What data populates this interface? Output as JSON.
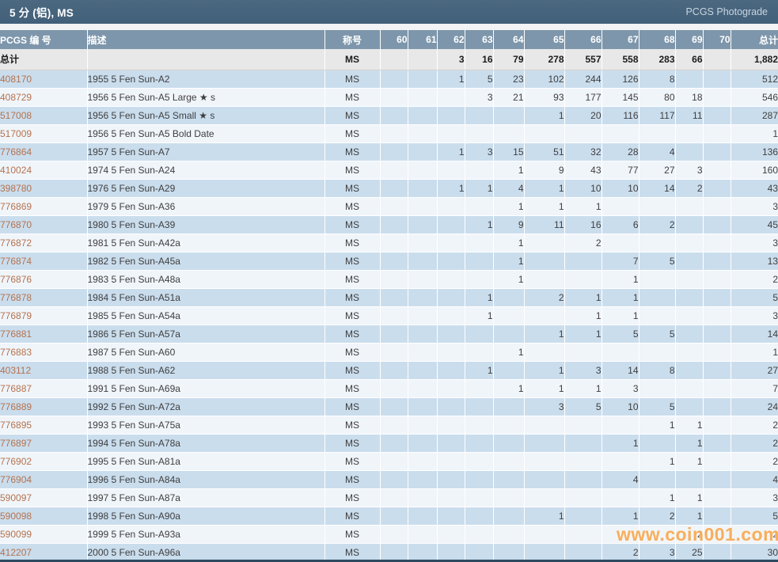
{
  "header": {
    "title": "5 分 (铝), MS",
    "photograde_link": "PCGS Photograde"
  },
  "colors": {
    "titlebar": "#45617a",
    "column_header": "#7d96ab",
    "totals_row_bg": "#e8e8e8",
    "row_blue": "#cadded",
    "row_light": "#f0f5fa",
    "pcgs_link": "#b5724e",
    "bottom_border": "#2d4a61",
    "watermark_orange": "#f4962d"
  },
  "table": {
    "column_headers": {
      "pcgs": "PCGS 编 号",
      "description": "描述",
      "designation": "称号",
      "grades": [
        "60",
        "61",
        "62",
        "63",
        "64",
        "65",
        "66",
        "67",
        "68",
        "69",
        "70"
      ],
      "total": "总计"
    },
    "totals_row": {
      "label": "总计",
      "designation": "MS",
      "grades": [
        "",
        "",
        "3",
        "16",
        "79",
        "278",
        "557",
        "558",
        "283",
        "66",
        ""
      ],
      "total": "1,882"
    },
    "rows": [
      {
        "pcgs": "408170",
        "description": "1955 5 Fen Sun-A2",
        "designation": "MS",
        "grades": [
          "",
          "",
          "1",
          "5",
          "23",
          "102",
          "244",
          "126",
          "8",
          "",
          ""
        ],
        "total": "512"
      },
      {
        "pcgs": "408729",
        "description": "1956 5 Fen Sun-A5 Large ★ s",
        "designation": "MS",
        "grades": [
          "",
          "",
          "",
          "3",
          "21",
          "93",
          "177",
          "145",
          "80",
          "18",
          ""
        ],
        "total": "546"
      },
      {
        "pcgs": "517008",
        "description": "1956 5 Fen Sun-A5 Small ★ s",
        "designation": "MS",
        "grades": [
          "",
          "",
          "",
          "",
          "",
          "1",
          "20",
          "116",
          "117",
          "11",
          ""
        ],
        "total": "287"
      },
      {
        "pcgs": "517009",
        "description": "1956 5 Fen Sun-A5 Bold Date",
        "designation": "MS",
        "grades": [
          "",
          "",
          "",
          "",
          "",
          "",
          "",
          "",
          "",
          "",
          ""
        ],
        "total": "1"
      },
      {
        "pcgs": "776864",
        "description": "1957 5 Fen Sun-A7",
        "designation": "MS",
        "grades": [
          "",
          "",
          "1",
          "3",
          "15",
          "51",
          "32",
          "28",
          "4",
          "",
          ""
        ],
        "total": "136"
      },
      {
        "pcgs": "410024",
        "description": "1974 5 Fen Sun-A24",
        "designation": "MS",
        "grades": [
          "",
          "",
          "",
          "",
          "1",
          "9",
          "43",
          "77",
          "27",
          "3",
          ""
        ],
        "total": "160"
      },
      {
        "pcgs": "398780",
        "description": "1976 5 Fen Sun-A29",
        "designation": "MS",
        "grades": [
          "",
          "",
          "1",
          "1",
          "4",
          "1",
          "10",
          "10",
          "14",
          "2",
          ""
        ],
        "total": "43"
      },
      {
        "pcgs": "776869",
        "description": "1979 5 Fen Sun-A36",
        "designation": "MS",
        "grades": [
          "",
          "",
          "",
          "",
          "1",
          "1",
          "1",
          "",
          "",
          "",
          ""
        ],
        "total": "3"
      },
      {
        "pcgs": "776870",
        "description": "1980 5 Fen Sun-A39",
        "designation": "MS",
        "grades": [
          "",
          "",
          "",
          "1",
          "9",
          "11",
          "16",
          "6",
          "2",
          "",
          ""
        ],
        "total": "45"
      },
      {
        "pcgs": "776872",
        "description": "1981 5 Fen Sun-A42a",
        "designation": "MS",
        "grades": [
          "",
          "",
          "",
          "",
          "1",
          "",
          "2",
          "",
          "",
          "",
          ""
        ],
        "total": "3"
      },
      {
        "pcgs": "776874",
        "description": "1982 5 Fen Sun-A45a",
        "designation": "MS",
        "grades": [
          "",
          "",
          "",
          "",
          "1",
          "",
          "",
          "7",
          "5",
          "",
          ""
        ],
        "total": "13"
      },
      {
        "pcgs": "776876",
        "description": "1983 5 Fen Sun-A48a",
        "designation": "MS",
        "grades": [
          "",
          "",
          "",
          "",
          "1",
          "",
          "",
          "1",
          "",
          "",
          ""
        ],
        "total": "2"
      },
      {
        "pcgs": "776878",
        "description": "1984 5 Fen Sun-A51a",
        "designation": "MS",
        "grades": [
          "",
          "",
          "",
          "1",
          "",
          "2",
          "1",
          "1",
          "",
          "",
          ""
        ],
        "total": "5"
      },
      {
        "pcgs": "776879",
        "description": "1985 5 Fen Sun-A54a",
        "designation": "MS",
        "grades": [
          "",
          "",
          "",
          "1",
          "",
          "",
          "1",
          "1",
          "",
          "",
          ""
        ],
        "total": "3"
      },
      {
        "pcgs": "776881",
        "description": "1986 5 Fen Sun-A57a",
        "designation": "MS",
        "grades": [
          "",
          "",
          "",
          "",
          "",
          "1",
          "1",
          "5",
          "5",
          "",
          ""
        ],
        "total": "14"
      },
      {
        "pcgs": "776883",
        "description": "1987 5 Fen Sun-A60",
        "designation": "MS",
        "grades": [
          "",
          "",
          "",
          "",
          "1",
          "",
          "",
          "",
          "",
          "",
          ""
        ],
        "total": "1"
      },
      {
        "pcgs": "403112",
        "description": "1988 5 Fen Sun-A62",
        "designation": "MS",
        "grades": [
          "",
          "",
          "",
          "1",
          "",
          "1",
          "3",
          "14",
          "8",
          "",
          ""
        ],
        "total": "27"
      },
      {
        "pcgs": "776887",
        "description": "1991 5 Fen Sun-A69a",
        "designation": "MS",
        "grades": [
          "",
          "",
          "",
          "",
          "1",
          "1",
          "1",
          "3",
          "",
          "",
          ""
        ],
        "total": "7"
      },
      {
        "pcgs": "776889",
        "description": "1992 5 Fen Sun-A72a",
        "designation": "MS",
        "grades": [
          "",
          "",
          "",
          "",
          "",
          "3",
          "5",
          "10",
          "5",
          "",
          ""
        ],
        "total": "24"
      },
      {
        "pcgs": "776895",
        "description": "1993 5 Fen Sun-A75a",
        "designation": "MS",
        "grades": [
          "",
          "",
          "",
          "",
          "",
          "",
          "",
          "",
          "1",
          "1",
          ""
        ],
        "total": "2"
      },
      {
        "pcgs": "776897",
        "description": "1994 5 Fen Sun-A78a",
        "designation": "MS",
        "grades": [
          "",
          "",
          "",
          "",
          "",
          "",
          "",
          "1",
          "",
          "1",
          ""
        ],
        "total": "2"
      },
      {
        "pcgs": "776902",
        "description": "1995 5 Fen Sun-A81a",
        "designation": "MS",
        "grades": [
          "",
          "",
          "",
          "",
          "",
          "",
          "",
          "",
          "1",
          "1",
          ""
        ],
        "total": "2"
      },
      {
        "pcgs": "776904",
        "description": "1996 5 Fen Sun-A84a",
        "designation": "MS",
        "grades": [
          "",
          "",
          "",
          "",
          "",
          "",
          "",
          "4",
          "",
          "",
          ""
        ],
        "total": "4"
      },
      {
        "pcgs": "590097",
        "description": "1997 5 Fen Sun-A87a",
        "designation": "MS",
        "grades": [
          "",
          "",
          "",
          "",
          "",
          "",
          "",
          "",
          "1",
          "1",
          ""
        ],
        "total": "3"
      },
      {
        "pcgs": "590098",
        "description": "1998 5 Fen Sun-A90a",
        "designation": "MS",
        "grades": [
          "",
          "",
          "",
          "",
          "",
          "1",
          "",
          "1",
          "2",
          "1",
          ""
        ],
        "total": "5"
      },
      {
        "pcgs": "590099",
        "description": "1999 5 Fen Sun-A93a",
        "designation": "MS",
        "grades": [
          "",
          "",
          "",
          "",
          "",
          "",
          "",
          "",
          "",
          "2",
          ""
        ],
        "total": "2"
      },
      {
        "pcgs": "412207",
        "description": "2000 5 Fen Sun-A96a",
        "designation": "MS",
        "grades": [
          "",
          "",
          "",
          "",
          "",
          "",
          "",
          "2",
          "3",
          "25",
          ""
        ],
        "total": "30"
      }
    ]
  },
  "watermark": {
    "text": "www.coin001.com"
  }
}
